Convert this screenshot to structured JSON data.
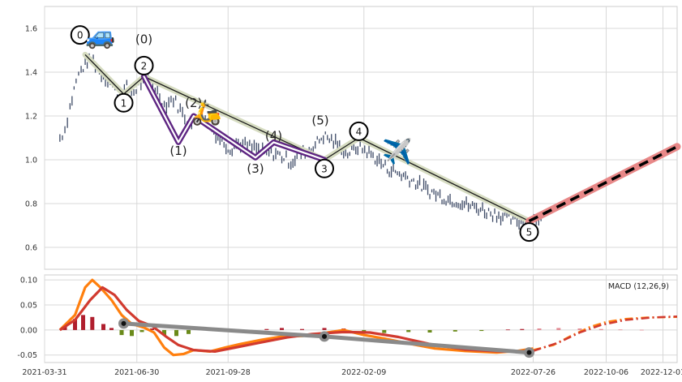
{
  "chart_data": [
    {
      "type": "line",
      "panel": "price",
      "ylim": [
        0.5,
        1.7
      ],
      "yticks": [
        "0.6",
        "0.8",
        "1.0",
        "1.2",
        "1.4",
        "1.6"
      ],
      "grid": true,
      "price_trace": [
        [
          "2021-04-15",
          1.1
        ],
        [
          "2021-04-20",
          1.14
        ],
        [
          "2021-04-25",
          1.24
        ],
        [
          "2021-05-01",
          1.36
        ],
        [
          "2021-05-06",
          1.41
        ],
        [
          "2021-05-12",
          1.45
        ],
        [
          "2021-05-18",
          1.46
        ],
        [
          "2021-05-24",
          1.4
        ],
        [
          "2021-05-30",
          1.38
        ],
        [
          "2021-06-06",
          1.34
        ],
        [
          "2021-06-13",
          1.29
        ],
        [
          "2021-06-20",
          1.33
        ],
        [
          "2021-06-27",
          1.31
        ],
        [
          "2021-07-04",
          1.35
        ],
        [
          "2021-07-11",
          1.37
        ],
        [
          "2021-07-18",
          1.33
        ],
        [
          "2021-07-27",
          1.25
        ],
        [
          "2021-08-05",
          1.28
        ],
        [
          "2021-08-14",
          1.21
        ],
        [
          "2021-08-23",
          1.16
        ],
        [
          "2021-09-01",
          1.21
        ],
        [
          "2021-09-10",
          1.15
        ],
        [
          "2021-09-20",
          1.1
        ],
        [
          "2021-09-30",
          1.05
        ],
        [
          "2021-10-08",
          1.08
        ],
        [
          "2021-10-17",
          1.06
        ],
        [
          "2021-10-26",
          1.05
        ],
        [
          "2021-11-05",
          1.03
        ],
        [
          "2021-11-14",
          1.03
        ],
        [
          "2021-11-22",
          1.01
        ],
        [
          "2021-11-29",
          0.99
        ],
        [
          "2021-12-07",
          1.02
        ],
        [
          "2021-12-15",
          1.04
        ],
        [
          "2021-12-23",
          1.07
        ],
        [
          "2021-12-31",
          1.11
        ],
        [
          "2022-01-08",
          1.09
        ],
        [
          "2022-01-16",
          1.06
        ],
        [
          "2022-01-24",
          1.03
        ],
        [
          "2022-02-03",
          1.06
        ],
        [
          "2022-02-12",
          1.04
        ],
        [
          "2022-02-22",
          1.0
        ],
        [
          "2022-03-04",
          0.96
        ],
        [
          "2022-03-14",
          0.94
        ],
        [
          "2022-03-24",
          0.92
        ],
        [
          "2022-04-03",
          0.89
        ],
        [
          "2022-04-13",
          0.86
        ],
        [
          "2022-04-23",
          0.84
        ],
        [
          "2022-05-03",
          0.82
        ],
        [
          "2022-05-13",
          0.81
        ],
        [
          "2022-05-23",
          0.79
        ],
        [
          "2022-06-02",
          0.78
        ],
        [
          "2022-06-12",
          0.76
        ],
        [
          "2022-06-22",
          0.75
        ],
        [
          "2022-07-02",
          0.73
        ],
        [
          "2022-07-12",
          0.72
        ],
        [
          "2022-07-20",
          0.72
        ],
        [
          "2022-07-29",
          0.74
        ],
        [
          "2022-08-05",
          0.72
        ]
      ],
      "wave_labels": [
        {
          "label": "0",
          "date": "2021-05-05",
          "y": 1.57,
          "circled": true
        },
        {
          "label": "1",
          "date": "2021-06-17",
          "y": 1.26,
          "circled": true
        },
        {
          "label": "2",
          "date": "2021-07-07",
          "y": 1.43,
          "circled": true
        },
        {
          "label": "3",
          "date": "2022-01-01",
          "y": 0.96,
          "circled": true
        },
        {
          "label": "4",
          "date": "2022-02-04",
          "y": 1.13,
          "circled": true
        },
        {
          "label": "5",
          "date": "2022-07-22",
          "y": 0.67,
          "circled": true
        },
        {
          "label": "(0)",
          "date": "2021-07-07",
          "y": 1.55,
          "circled": false
        },
        {
          "label": "(1)",
          "date": "2021-08-10",
          "y": 1.04,
          "circled": false
        },
        {
          "label": "(2)",
          "date": "2021-08-25",
          "y": 1.26,
          "circled": false
        },
        {
          "label": "(3)",
          "date": "2021-10-25",
          "y": 0.96,
          "circled": false
        },
        {
          "label": "(4)",
          "date": "2021-11-12",
          "y": 1.11,
          "circled": false
        },
        {
          "label": "(5)",
          "date": "2021-12-28",
          "y": 1.18,
          "circled": false
        }
      ],
      "major_wave": [
        [
          "2021-05-10",
          1.48
        ],
        [
          "2021-06-17",
          1.3
        ],
        [
          "2021-07-07",
          1.38
        ],
        [
          "2022-01-01",
          1.0
        ],
        [
          "2022-02-04",
          1.1
        ],
        [
          "2022-07-22",
          0.72
        ]
      ],
      "minor_wave": [
        [
          "2021-07-07",
          1.38
        ],
        [
          "2021-08-10",
          1.08
        ],
        [
          "2021-08-25",
          1.2
        ],
        [
          "2021-10-25",
          1.01
        ],
        [
          "2021-11-12",
          1.08
        ],
        [
          "2022-01-01",
          1.0
        ]
      ],
      "forecast": [
        [
          "2022-07-22",
          0.72
        ],
        [
          "2022-12-15",
          1.06
        ]
      ],
      "emoji_markers": [
        {
          "icon": "car",
          "glyph": "🚙",
          "date": "2021-05-25",
          "y": 1.57
        },
        {
          "icon": "scooter",
          "glyph": "🛵",
          "date": "2021-09-07",
          "y": 1.22
        },
        {
          "icon": "airplane",
          "glyph": "✈️",
          "date": "2022-03-14",
          "y": 1.04
        }
      ]
    },
    {
      "type": "line",
      "panel": "macd",
      "legend_text": "MACD (12,26,9)",
      "ylim": [
        -0.065,
        0.11
      ],
      "yticks": [
        "-0.05",
        "0.00",
        "0.05",
        "0.10"
      ],
      "xlim": [
        "2021-03-31",
        "2022-12-15"
      ],
      "xticks": [
        "2021-03-31",
        "2021-06-30",
        "2021-09-28",
        "2022-02-09",
        "2022-07-26",
        "2022-10-06",
        "2022-12-01"
      ],
      "macd_line": [
        [
          "2021-04-15",
          0.0
        ],
        [
          "2021-04-30",
          0.03
        ],
        [
          "2021-05-10",
          0.085
        ],
        [
          "2021-05-17",
          0.1
        ],
        [
          "2021-05-25",
          0.085
        ],
        [
          "2021-06-05",
          0.06
        ],
        [
          "2021-06-15",
          0.03
        ],
        [
          "2021-06-25",
          0.012
        ],
        [
          "2021-07-07",
          0.005
        ],
        [
          "2021-07-17",
          -0.005
        ],
        [
          "2021-07-27",
          -0.035
        ],
        [
          "2021-08-05",
          -0.05
        ],
        [
          "2021-08-15",
          -0.048
        ],
        [
          "2021-08-25",
          -0.04
        ],
        [
          "2021-09-10",
          -0.043
        ],
        [
          "2021-09-25",
          -0.035
        ],
        [
          "2021-10-10",
          -0.028
        ],
        [
          "2021-10-30",
          -0.02
        ],
        [
          "2021-11-20",
          -0.013
        ],
        [
          "2021-12-10",
          -0.012
        ],
        [
          "2022-01-01",
          -0.006
        ],
        [
          "2022-01-20",
          0.0
        ],
        [
          "2022-02-09",
          -0.01
        ],
        [
          "2022-03-01",
          -0.017
        ],
        [
          "2022-03-25",
          -0.027
        ],
        [
          "2022-04-20",
          -0.037
        ],
        [
          "2022-05-20",
          -0.042
        ],
        [
          "2022-06-20",
          -0.045
        ],
        [
          "2022-07-10",
          -0.042
        ],
        [
          "2022-07-26",
          -0.037
        ]
      ],
      "signal_line": [
        [
          "2021-04-15",
          0.0
        ],
        [
          "2021-04-30",
          0.02
        ],
        [
          "2021-05-15",
          0.06
        ],
        [
          "2021-05-27",
          0.085
        ],
        [
          "2021-06-08",
          0.07
        ],
        [
          "2021-06-20",
          0.04
        ],
        [
          "2021-07-02",
          0.018
        ],
        [
          "2021-07-15",
          0.008
        ],
        [
          "2021-07-30",
          -0.015
        ],
        [
          "2021-08-10",
          -0.03
        ],
        [
          "2021-08-25",
          -0.04
        ],
        [
          "2021-09-15",
          -0.043
        ],
        [
          "2021-10-05",
          -0.035
        ],
        [
          "2021-10-30",
          -0.025
        ],
        [
          "2021-11-25",
          -0.015
        ],
        [
          "2021-12-20",
          -0.008
        ],
        [
          "2022-01-20",
          -0.004
        ],
        [
          "2022-02-15",
          -0.005
        ],
        [
          "2022-03-15",
          -0.014
        ],
        [
          "2022-04-15",
          -0.028
        ],
        [
          "2022-05-20",
          -0.039
        ],
        [
          "2022-06-25",
          -0.043
        ],
        [
          "2022-07-26",
          -0.042
        ]
      ],
      "macd_forecast": [
        [
          "2022-07-26",
          -0.04
        ],
        [
          "2022-08-15",
          -0.03
        ],
        [
          "2022-09-01",
          -0.012
        ],
        [
          "2022-09-20",
          0.006
        ],
        [
          "2022-10-06",
          0.016
        ],
        [
          "2022-10-25",
          0.022
        ],
        [
          "2022-11-15",
          0.025
        ],
        [
          "2022-12-15",
          0.026
        ]
      ],
      "signal_forecast": [
        [
          "2022-07-26",
          -0.042
        ],
        [
          "2022-08-20",
          -0.025
        ],
        [
          "2022-09-10",
          -0.005
        ],
        [
          "2022-10-01",
          0.01
        ],
        [
          "2022-10-25",
          0.02
        ],
        [
          "2022-11-20",
          0.025
        ],
        [
          "2022-12-15",
          0.027
        ]
      ],
      "trend_line": [
        [
          "2021-06-17",
          0.013
        ],
        [
          "2022-01-01",
          -0.013
        ],
        [
          "2022-07-22",
          -0.045
        ]
      ],
      "histogram": [
        [
          "2021-04-20",
          0.01
        ],
        [
          "2021-04-30",
          0.022
        ],
        [
          "2021-05-08",
          0.03
        ],
        [
          "2021-05-17",
          0.026
        ],
        [
          "2021-05-28",
          0.012
        ],
        [
          "2021-06-05",
          0.004
        ],
        [
          "2021-06-15",
          -0.01
        ],
        [
          "2021-06-25",
          -0.012
        ],
        [
          "2021-07-05",
          -0.004
        ],
        [
          "2021-07-15",
          0.003
        ],
        [
          "2021-07-27",
          -0.01
        ],
        [
          "2021-08-08",
          -0.012
        ],
        [
          "2021-08-20",
          -0.008
        ],
        [
          "2021-09-05",
          0.004
        ],
        [
          "2021-09-20",
          0.003
        ],
        [
          "2021-10-05",
          0.0
        ],
        [
          "2021-10-20",
          -0.002
        ],
        [
          "2021-11-05",
          0.002
        ],
        [
          "2021-11-20",
          0.004
        ],
        [
          "2021-12-10",
          0.002
        ],
        [
          "2022-01-01",
          0.004
        ],
        [
          "2022-01-20",
          0.003
        ],
        [
          "2022-02-09",
          -0.004
        ],
        [
          "2022-03-01",
          -0.006
        ],
        [
          "2022-03-25",
          -0.004
        ],
        [
          "2022-04-15",
          -0.005
        ],
        [
          "2022-05-10",
          -0.003
        ],
        [
          "2022-06-05",
          -0.002
        ],
        [
          "2022-07-01",
          0.001
        ],
        [
          "2022-07-15",
          0.002
        ],
        [
          "2022-08-01",
          0.003
        ],
        [
          "2022-08-20",
          0.004
        ],
        [
          "2022-09-10",
          0.003
        ],
        [
          "2022-10-01",
          0.002
        ],
        [
          "2022-10-20",
          0.001
        ],
        [
          "2022-11-10",
          0.0005
        ]
      ],
      "grid": true
    }
  ],
  "colors": {
    "candles": "#3d4a66",
    "major_band": "#d6dcc1",
    "major_line": "#1a1a1a",
    "minor_outer": "#5e2582",
    "minor_inner": "#ffffff",
    "forecast_band": "#e88888",
    "forecast_dash": "#000000",
    "macd_line": "#ff7f0e",
    "signal_line": "#d13a2f",
    "trend_line": "#8a8a8a",
    "hist_pos": "#b01f2e",
    "hist_neg": "#6a8a1a",
    "hist_pos_forecast": "#e38b94",
    "grid": "#d8d8d8",
    "frame": "#cccccc"
  }
}
